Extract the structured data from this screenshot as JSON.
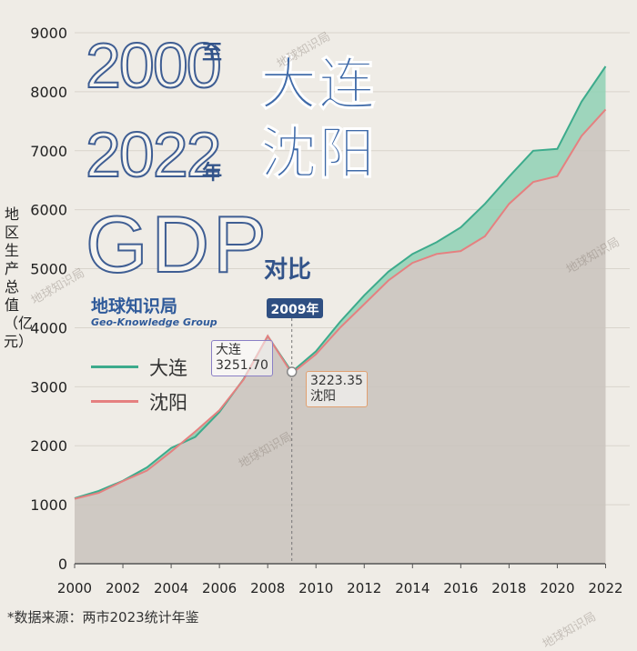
{
  "title": {
    "year_start": "2000",
    "connector_zhi": "至",
    "year_end": "2022",
    "connector_nian": "年",
    "gdp": "GDP",
    "duibi": "对比",
    "city_line1": "大连",
    "city_line2": "沈阳"
  },
  "brand": {
    "name": "地球知识局",
    "sub": "Geo-Knowledge Group"
  },
  "watermark": "地球知识局",
  "source_note": "*数据来源：两市2023统计年鉴",
  "legend": [
    {
      "label": "大连",
      "color": "#3dab8c"
    },
    {
      "label": "沈阳",
      "color": "#e58080"
    }
  ],
  "marker": {
    "year_label": "2009年",
    "dalian_city": "大连",
    "dalian_value": "3251.70",
    "shenyang_city": "沈阳",
    "shenyang_value": "3223.35"
  },
  "chart_data": {
    "type": "area",
    "ylabel": "地区生产总值（亿元）",
    "xlabel": "",
    "x": [
      2000,
      2001,
      2002,
      2003,
      2004,
      2005,
      2006,
      2007,
      2008,
      2009,
      2010,
      2011,
      2012,
      2013,
      2014,
      2015,
      2016,
      2017,
      2018,
      2019,
      2020,
      2021,
      2022
    ],
    "xticks": [
      "2000",
      "2002",
      "2004",
      "2006",
      "2008",
      "2010",
      "2012",
      "2014",
      "2016",
      "2018",
      "2020",
      "2022"
    ],
    "yticks": [
      "0",
      "1000",
      "2000",
      "3000",
      "4000",
      "5000",
      "6000",
      "7000",
      "8000",
      "9000"
    ],
    "ylim": [
      0,
      9000
    ],
    "xlim": [
      2000,
      2023
    ],
    "grid": true,
    "series": [
      {
        "name": "大连",
        "color": "#3dab8c",
        "values": [
          1110,
          1235,
          1406,
          1633,
          1962,
          2150,
          2570,
          3131,
          3858,
          3251.7,
          3600,
          4100,
          4550,
          4950,
          5250,
          5450,
          5700,
          6100,
          6560,
          7000,
          7030,
          7830,
          8430
        ]
      },
      {
        "name": "沈阳",
        "color": "#e58080",
        "values": [
          1100,
          1200,
          1400,
          1580,
          1900,
          2240,
          2600,
          3120,
          3860,
          3223.35,
          3550,
          4000,
          4400,
          4800,
          5100,
          5250,
          5300,
          5550,
          6100,
          6470,
          6570,
          7250,
          7700
        ]
      }
    ]
  }
}
